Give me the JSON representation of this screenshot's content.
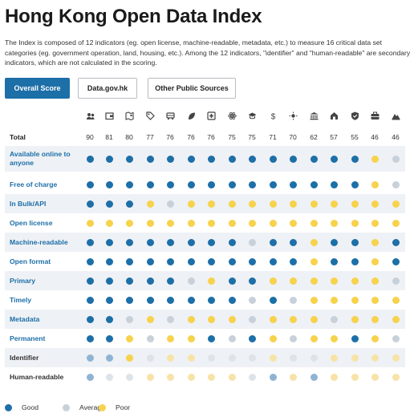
{
  "title": "Hong Kong Open Data Index",
  "description": "The Index is composed of 12 indicators (eg. open license, machine-readable, metadata, etc.) to measure 16 critical data set categories (eg. government operation, land, housing, etc.). Among the 12 indicators, \"identifier\" and \"human-readable\" are secondary indicators, which are not calculated in the scoring.",
  "buttons": [
    "Overall Score",
    "Data.gov.hk",
    "Other Public Sources"
  ],
  "categories": [
    {
      "icon": "people-icon",
      "score": "90"
    },
    {
      "icon": "budget-icon",
      "score": "81"
    },
    {
      "icon": "map-icon",
      "score": "80"
    },
    {
      "icon": "tag-icon",
      "score": "77"
    },
    {
      "icon": "bus-icon",
      "score": "76"
    },
    {
      "icon": "leaf-icon",
      "score": "76"
    },
    {
      "icon": "health-icon",
      "score": "76"
    },
    {
      "icon": "science-icon",
      "score": "75"
    },
    {
      "icon": "education-icon",
      "score": "75"
    },
    {
      "icon": "dollar-icon",
      "score": "71"
    },
    {
      "icon": "sun-icon",
      "score": "70"
    },
    {
      "icon": "government-icon",
      "score": "62"
    },
    {
      "icon": "housing-icon",
      "score": "57"
    },
    {
      "icon": "shield-icon",
      "score": "55"
    },
    {
      "icon": "briefcase-icon",
      "score": "46"
    },
    {
      "icon": "land-icon",
      "score": "46"
    }
  ],
  "total_label": "Total",
  "indicators": [
    {
      "label": "Available online to anyone",
      "secondary": false,
      "values": "GGGGGGGGGGGGGGPA"
    },
    {
      "label": "Free of charge",
      "secondary": false,
      "values": "GGGGGGGGGGGGGGPA"
    },
    {
      "label": "In Bulk/API",
      "secondary": false,
      "values": "GGGPAPPPPPPPPPPP"
    },
    {
      "label": "Open license",
      "secondary": false,
      "values": "PPPPPPPPPPPPPPPP"
    },
    {
      "label": "Machine-readable",
      "secondary": false,
      "values": "GGGGGGGGAGGPGGPG"
    },
    {
      "label": "Open format",
      "secondary": false,
      "values": "GGGGGGGGGGGPGGPG"
    },
    {
      "label": "Primary",
      "secondary": false,
      "values": "GGGGGAPGGPPPPPPA"
    },
    {
      "label": "Timely",
      "secondary": false,
      "values": "GGGGGGGGAGAPPPPP"
    },
    {
      "label": "Metadata",
      "secondary": false,
      "values": "GGAPAPPPAPPPAPPP"
    },
    {
      "label": "Permanent",
      "secondary": false,
      "values": "GGPAPPGAGPAPPGPA"
    },
    {
      "label": "Identifier",
      "secondary": true,
      "values": "glgPALPLPLALALALPLALALPLPLPLPLALPLPL"
    },
    {
      "label": "Human-readable",
      "secondary": true,
      "values": "glALALPLPLPLPLPLALglPLglPLPLPLPLAL"
    }
  ],
  "legend": [
    {
      "label": "Good",
      "color": "#1d6fa8"
    },
    {
      "label": "Average",
      "color": "#c8d1da"
    },
    {
      "label": "Poor",
      "color": "#f7d24b"
    }
  ]
}
